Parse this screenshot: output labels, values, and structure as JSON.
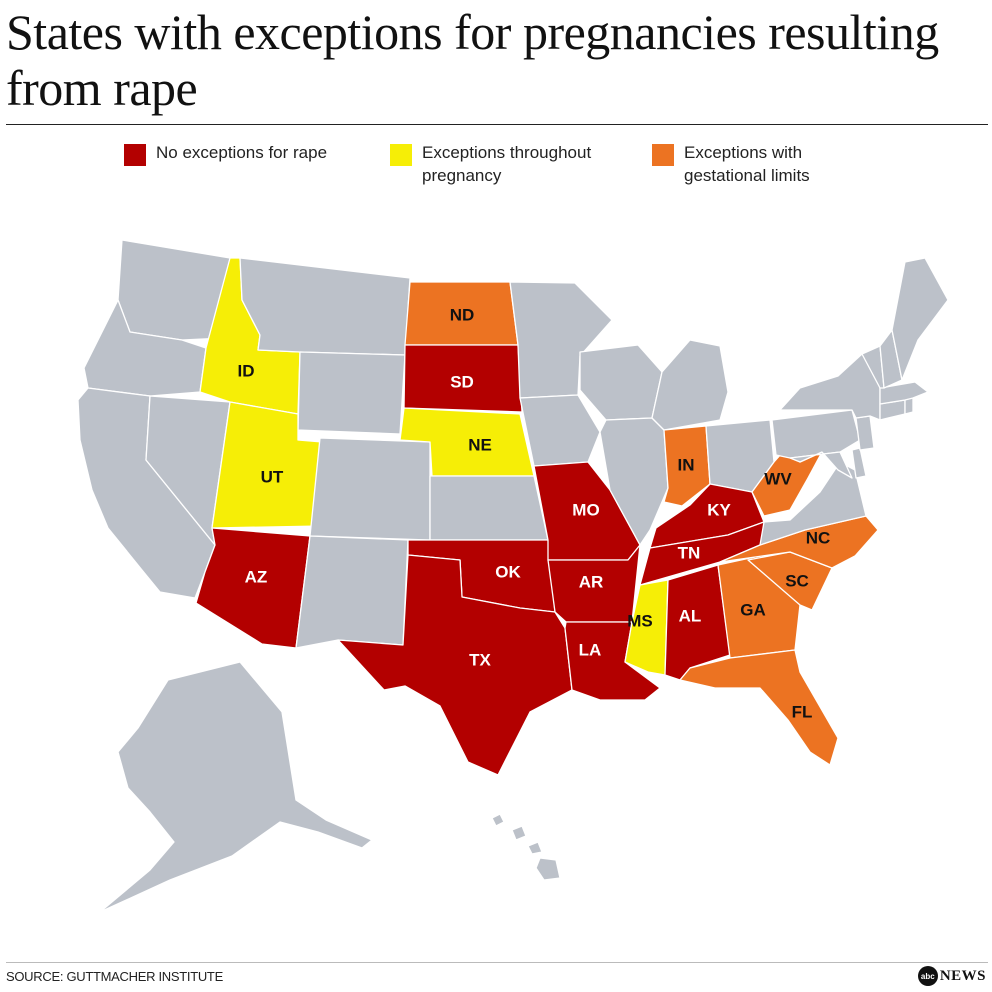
{
  "title": "States with exceptions for pregnancies resulting from rape",
  "legend": [
    {
      "key": "none",
      "label": "No exceptions for rape",
      "color": "#b30000"
    },
    {
      "key": "throughout",
      "label": "Exceptions throughout\npregnancy",
      "color": "#f6ee06"
    },
    {
      "key": "gestational",
      "label": "Exceptions with\ngestational limits",
      "color": "#ec7322"
    }
  ],
  "base_color": "#bcc1c9",
  "states": [
    {
      "abbr": "ID",
      "category": "throughout"
    },
    {
      "abbr": "UT",
      "category": "throughout"
    },
    {
      "abbr": "NE",
      "category": "throughout"
    },
    {
      "abbr": "MS",
      "category": "throughout"
    },
    {
      "abbr": "ND",
      "category": "gestational"
    },
    {
      "abbr": "IN",
      "category": "gestational"
    },
    {
      "abbr": "WV",
      "category": "gestational"
    },
    {
      "abbr": "NC",
      "category": "gestational"
    },
    {
      "abbr": "SC",
      "category": "gestational"
    },
    {
      "abbr": "GA",
      "category": "gestational"
    },
    {
      "abbr": "FL",
      "category": "gestational"
    },
    {
      "abbr": "SD",
      "category": "none"
    },
    {
      "abbr": "AZ",
      "category": "none"
    },
    {
      "abbr": "TX",
      "category": "none"
    },
    {
      "abbr": "OK",
      "category": "none"
    },
    {
      "abbr": "MO",
      "category": "none"
    },
    {
      "abbr": "AR",
      "category": "none"
    },
    {
      "abbr": "LA",
      "category": "none"
    },
    {
      "abbr": "TN",
      "category": "none"
    },
    {
      "abbr": "KY",
      "category": "none"
    },
    {
      "abbr": "AL",
      "category": "none"
    }
  ],
  "source": "SOURCE: GUTTMACHER INSTITUTE",
  "logo": {
    "circle_text": "abc",
    "word": "NEWS"
  }
}
